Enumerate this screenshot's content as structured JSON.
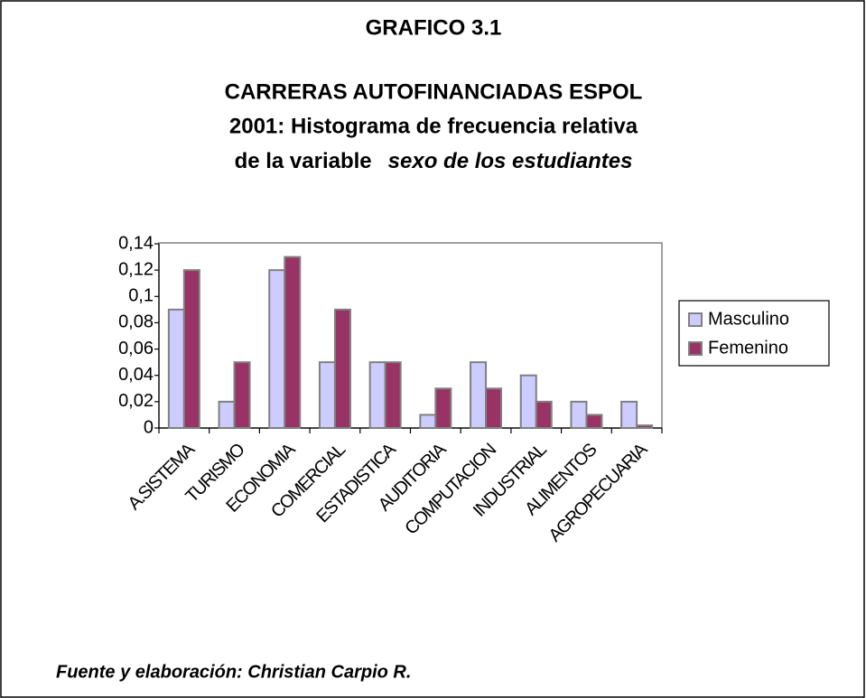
{
  "chart_data": {
    "type": "bar",
    "title": "GRAFICO 3.1",
    "subtitle": [
      "CARRERAS AUTOFINANCIADAS ESPOL",
      "2001: Histograma de frecuencia relativa",
      "de la variable",
      "sexo de los estudiantes"
    ],
    "categories": [
      "A.SISTEMA",
      "TURISMO",
      "ECONOMIA",
      "COMERCIAL",
      "ESTADISTICA",
      "AUDITORIA",
      "COMPUTACION",
      "INDUSTRIAL",
      "ALIMENTOS",
      "AGROPECUARIA"
    ],
    "series": [
      {
        "name": "Masculino",
        "color": "#ccccff",
        "values": [
          0.09,
          0.02,
          0.12,
          0.05,
          0.05,
          0.01,
          0.05,
          0.04,
          0.02,
          0.02
        ]
      },
      {
        "name": "Femenino",
        "color": "#993366",
        "values": [
          0.12,
          0.05,
          0.13,
          0.09,
          0.05,
          0.03,
          0.03,
          0.02,
          0.01,
          0.002
        ]
      }
    ],
    "ylim": [
      0,
      0.14
    ],
    "yticks": [
      0,
      {
        "value": 0.02,
        "label": "0,02"
      },
      {
        "value": 0.04,
        "label": "0,04"
      },
      {
        "value": 0.06,
        "label": "0,06"
      },
      {
        "value": 0.08,
        "label": "0,08"
      },
      {
        "value": 0.1,
        "label": "0,1"
      },
      {
        "value": 0.12,
        "label": "0,12"
      },
      {
        "value": 0.14,
        "label": "0,14"
      }
    ],
    "legend": "right",
    "annotation": "Fuente y elaboración: Christian Carpio R."
  }
}
